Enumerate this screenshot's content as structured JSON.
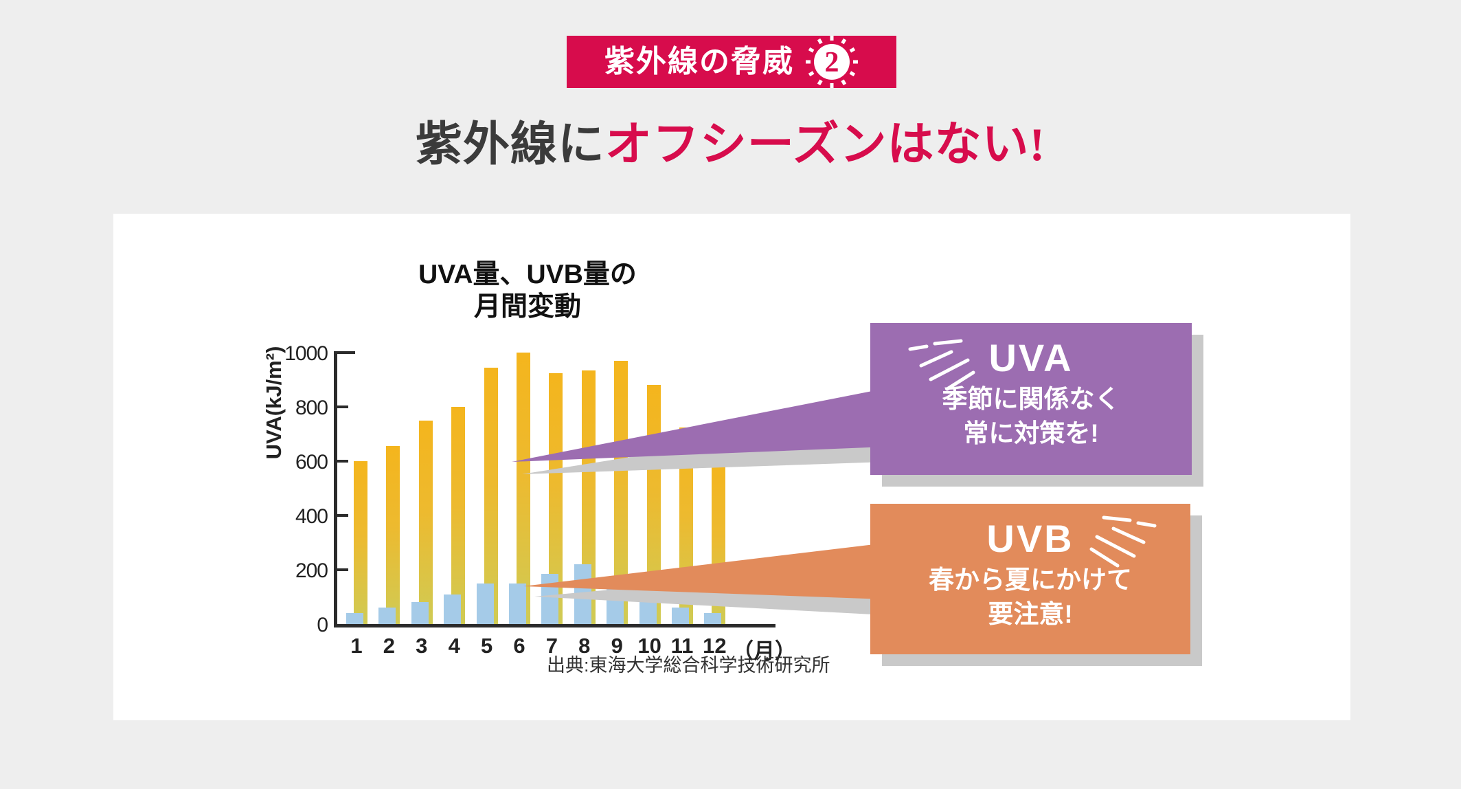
{
  "page": {
    "background": "#EEEEEE",
    "card_background": "#FFFFFF",
    "shadow_color": "#C9C9C9",
    "axis_color": "#2B2B2B"
  },
  "badge": {
    "label": "紫外線の脅威",
    "number": "2",
    "background": "#D70C4C",
    "text_color": "#FFFFFF"
  },
  "headline": {
    "prefix": "紫外線に",
    "emphasis": "オフシーズンはない!",
    "prefix_color": "#3B3B3B",
    "emphasis_color": "#D70C4C"
  },
  "chart_data": {
    "type": "bar",
    "title": "UVA量、UVB量の月間変動",
    "title_lines": [
      "UVA量、UVB量の",
      "月間変動"
    ],
    "ylabel": "UVA(kJ/m²)",
    "ylim": [
      0,
      1000
    ],
    "yticks": [
      0,
      200,
      400,
      600,
      800,
      1000
    ],
    "grid": false,
    "legend_position": "none",
    "categories": [
      "1",
      "2",
      "3",
      "4",
      "5",
      "6",
      "7",
      "8",
      "9",
      "10",
      "11",
      "12"
    ],
    "x_unit": "（月）",
    "series": [
      {
        "name": "UVA",
        "values": [
          600,
          655,
          750,
          800,
          945,
          1000,
          925,
          935,
          970,
          880,
          725,
          600
        ],
        "color_top": "#F4B51D",
        "color_mid": "#EDBA2F",
        "color_bottom": "#CFCB55"
      },
      {
        "name": "UVB",
        "values": [
          40,
          60,
          80,
          110,
          150,
          150,
          185,
          220,
          155,
          80,
          60,
          40
        ],
        "color": "#A5CBE8"
      }
    ],
    "source": "出典:東海大学総合科学技術研究所"
  },
  "callouts": [
    {
      "id": "uva",
      "heading": "UVA",
      "lines": [
        "季節に関係なく",
        "常に対策を!"
      ],
      "background": "#9C6DB1"
    },
    {
      "id": "uvb",
      "heading": "UVB",
      "lines": [
        "春から夏にかけて",
        "要注意!"
      ],
      "background": "#E28B5B"
    }
  ]
}
